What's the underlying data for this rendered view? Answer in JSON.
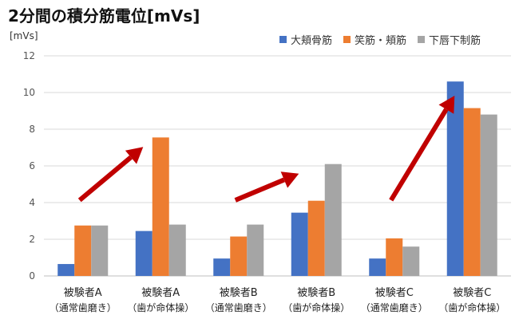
{
  "chart_data": {
    "type": "bar",
    "title": "2分間の積分筋電位[mVs]",
    "yunit": "[mVs]",
    "ylim": [
      0,
      12
    ],
    "yticks": [
      "0",
      "2",
      "4",
      "6",
      "8",
      "10",
      "12"
    ],
    "grid": true,
    "legend_position": "top-right",
    "categories": [
      {
        "line1": "被験者A",
        "line2": "（通常歯磨き）"
      },
      {
        "line1": "被験者A",
        "line2": "（歯が命体操）"
      },
      {
        "line1": "被験者B",
        "line2": "（通常歯磨き）"
      },
      {
        "line1": "被験者B",
        "line2": "（歯が命体操）"
      },
      {
        "line1": "被験者C",
        "line2": "（通常歯磨き）"
      },
      {
        "line1": "被験者C",
        "line2": "（歯が命体操）"
      }
    ],
    "series": [
      {
        "name": "大頬骨筋",
        "color": "#4472C4",
        "values": [
          0.65,
          2.45,
          0.95,
          3.45,
          0.95,
          10.6
        ]
      },
      {
        "name": "笑筋・頬筋",
        "color": "#ED7D31",
        "values": [
          2.75,
          7.55,
          2.15,
          4.1,
          2.05,
          9.15
        ]
      },
      {
        "name": "下唇下制筋",
        "color": "#A5A5A5",
        "values": [
          2.75,
          2.8,
          2.8,
          6.1,
          1.6,
          8.8
        ]
      }
    ],
    "annotations": [
      {
        "type": "arrow",
        "color": "#C00000",
        "from_category": 0,
        "to_category": 1
      },
      {
        "type": "arrow",
        "color": "#C00000",
        "from_category": 2,
        "to_category": 3
      },
      {
        "type": "arrow",
        "color": "#C00000",
        "from_category": 4,
        "to_category": 5
      }
    ]
  }
}
